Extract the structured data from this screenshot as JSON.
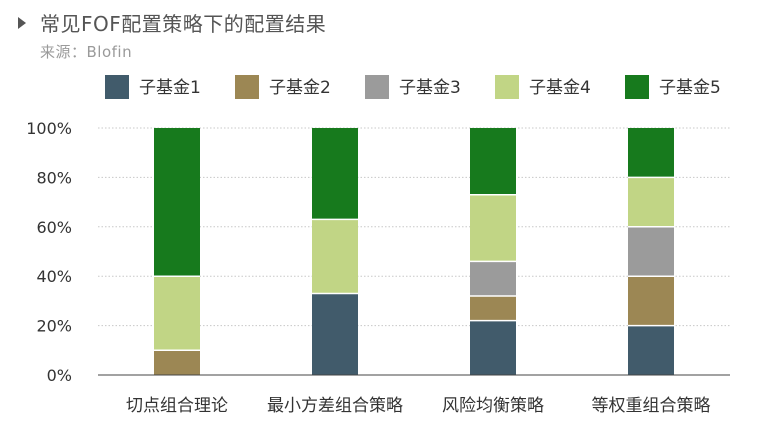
{
  "title": "常见FOF配置策略下的配置结果",
  "source": "来源：Blofin",
  "colors": {
    "子基金1": "#415b6b",
    "子基金2": "#9c8754",
    "子基金3": "#9b9b9b",
    "子基金4": "#c1d585",
    "子基金5": "#177a1d"
  },
  "chart_data": {
    "type": "bar",
    "stacked": true,
    "categories": [
      "切点组合理论",
      "最小方差组合策略",
      "风险均衡策略",
      "等权重组合策略"
    ],
    "series": [
      {
        "name": "子基金1",
        "values": [
          0,
          33,
          22,
          20
        ]
      },
      {
        "name": "子基金2",
        "values": [
          10,
          0,
          10,
          20
        ]
      },
      {
        "name": "子基金3",
        "values": [
          0,
          0,
          14,
          20
        ]
      },
      {
        "name": "子基金4",
        "values": [
          30,
          30,
          27,
          20
        ]
      },
      {
        "name": "子基金5",
        "values": [
          60,
          37,
          27,
          20
        ]
      }
    ],
    "ylim": [
      0,
      100
    ],
    "yticks": [
      "0%",
      "20%",
      "40%",
      "60%",
      "80%",
      "100%"
    ],
    "grid": true,
    "legend": "top"
  }
}
